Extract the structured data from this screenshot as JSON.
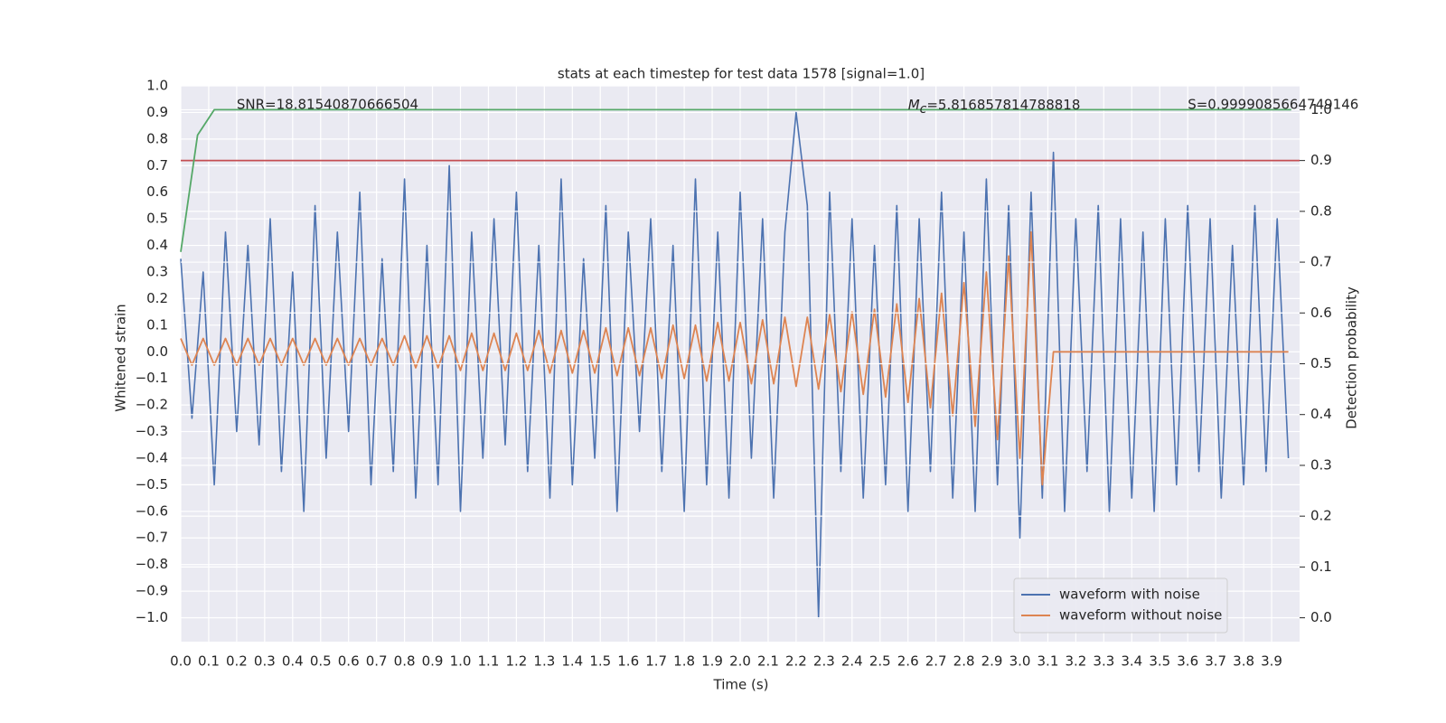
{
  "chart_data": {
    "type": "line",
    "title": "stats at each timestep for test data 1578 [signal=1.0]",
    "xlabel": "Time (s)",
    "ylabel": "Whitened strain",
    "y2label": "Detection probability",
    "annotations": [
      "SNR=18.81540870666504",
      {
        "symbol": "M",
        "subscript": "c",
        "text": "=5.816857814788818"
      },
      "S=0.9999085664749146"
    ],
    "x": [
      0,
      0.04,
      0.08,
      0.12,
      0.16,
      0.2,
      0.24,
      0.28,
      0.32,
      0.36,
      0.4,
      0.44,
      0.48,
      0.52,
      0.56,
      0.6,
      0.64,
      0.68,
      0.72,
      0.76,
      0.8,
      0.84,
      0.88,
      0.92,
      0.96,
      1,
      1.04,
      1.08,
      1.12,
      1.16,
      1.2,
      1.24,
      1.28,
      1.32,
      1.36,
      1.4,
      1.44,
      1.48,
      1.52,
      1.56,
      1.6,
      1.64,
      1.68,
      1.72,
      1.76,
      1.8,
      1.84,
      1.88,
      1.92,
      1.96,
      2,
      2.04,
      2.08,
      2.12,
      2.16,
      2.2,
      2.24,
      2.28,
      2.32,
      2.36,
      2.4,
      2.44,
      2.48,
      2.52,
      2.56,
      2.6,
      2.64,
      2.68,
      2.72,
      2.76,
      2.8,
      2.84,
      2.88,
      2.92,
      2.96,
      3,
      3.04,
      3.08,
      3.12,
      3.16,
      3.2,
      3.24,
      3.28,
      3.32,
      3.36,
      3.4,
      3.44,
      3.48,
      3.52,
      3.56,
      3.6,
      3.64,
      3.68,
      3.72,
      3.76,
      3.8,
      3.84,
      3.88,
      3.92,
      3.96
    ],
    "series": [
      {
        "name": "waveform with noise",
        "color": "#4c72b0",
        "values": [
          0.35,
          -0.25,
          0.3,
          -0.5,
          0.45,
          -0.3,
          0.4,
          -0.35,
          0.5,
          -0.45,
          0.3,
          -0.6,
          0.55,
          -0.4,
          0.45,
          -0.3,
          0.6,
          -0.5,
          0.35,
          -0.45,
          0.65,
          -0.55,
          0.4,
          -0.5,
          0.7,
          -0.6,
          0.45,
          -0.4,
          0.5,
          -0.35,
          0.6,
          -0.45,
          0.4,
          -0.55,
          0.65,
          -0.5,
          0.35,
          -0.4,
          0.55,
          -0.6,
          0.45,
          -0.3,
          0.5,
          -0.45,
          0.4,
          -0.6,
          0.65,
          -0.5,
          0.45,
          -0.55,
          0.6,
          -0.4,
          0.5,
          -0.55,
          0.45,
          0.9,
          0.55,
          -1.0,
          0.6,
          -0.45,
          0.5,
          -0.55,
          0.4,
          -0.5,
          0.55,
          -0.6,
          0.5,
          -0.45,
          0.6,
          -0.55,
          0.45,
          -0.6,
          0.65,
          -0.5,
          0.55,
          -0.7,
          0.6,
          -0.55,
          0.75,
          -0.6,
          0.5,
          -0.45,
          0.55,
          -0.6,
          0.5,
          -0.55,
          0.45,
          -0.6,
          0.5,
          -0.5,
          0.55,
          -0.45,
          0.5,
          -0.55,
          0.4,
          -0.5,
          0.55,
          -0.45,
          0.5,
          -0.4
        ]
      },
      {
        "name": "waveform without noise",
        "color": "#dd8452",
        "values": [
          0.05,
          -0.05,
          0.05,
          -0.05,
          0.05,
          -0.05,
          0.05,
          -0.05,
          0.05,
          -0.05,
          0.05,
          -0.05,
          0.05,
          -0.05,
          0.05,
          -0.05,
          0.05,
          -0.05,
          0.05,
          -0.05,
          0.06,
          -0.06,
          0.06,
          -0.06,
          0.06,
          -0.07,
          0.07,
          -0.07,
          0.07,
          -0.07,
          0.07,
          -0.07,
          0.08,
          -0.08,
          0.08,
          -0.08,
          0.08,
          -0.08,
          0.09,
          -0.09,
          0.09,
          -0.09,
          0.09,
          -0.1,
          0.1,
          -0.1,
          0.1,
          -0.11,
          0.11,
          -0.11,
          0.11,
          -0.12,
          0.12,
          -0.12,
          0.13,
          -0.13,
          0.13,
          -0.14,
          0.14,
          -0.15,
          0.15,
          -0.16,
          0.16,
          -0.17,
          0.18,
          -0.19,
          0.2,
          -0.21,
          0.22,
          -0.24,
          0.26,
          -0.28,
          0.3,
          -0.33,
          0.36,
          -0.4,
          0.45,
          -0.5,
          0,
          0,
          0,
          0,
          0,
          0,
          0,
          0,
          0,
          0,
          0,
          0,
          0,
          0,
          0,
          0,
          0,
          0,
          0,
          0,
          0,
          0
        ]
      },
      {
        "color": "#55a868",
        "axis": "y2",
        "x": [
          0,
          0.06,
          0.12,
          0.2,
          3.97
        ],
        "values": [
          0.72,
          0.95,
          1.0,
          1.0,
          1.0
        ]
      }
    ],
    "hlines": [
      {
        "axis": "y2",
        "value": 0.9,
        "color": "#c44e52"
      }
    ],
    "xlim": [
      0,
      4
    ],
    "ylim": [
      -1.09,
      1.0
    ],
    "y2lim": [
      -0.047,
      1.047
    ],
    "xticks": [
      {
        "value": 0,
        "label": "0.0"
      },
      0.1,
      0.2,
      0.3,
      0.4,
      0.5,
      0.6,
      0.7,
      0.8,
      0.9,
      {
        "value": 1,
        "label": "1.0"
      },
      1.1,
      1.2,
      1.3,
      1.4,
      1.5,
      1.6,
      1.7,
      1.8,
      1.9,
      {
        "value": 2,
        "label": "2.0"
      },
      2.1,
      2.2,
      2.3,
      2.4,
      2.5,
      2.6,
      2.7,
      2.8,
      2.9,
      {
        "value": 3,
        "label": "3.0"
      },
      3.1,
      3.2,
      3.3,
      3.4,
      3.5,
      3.6,
      3.7,
      3.8,
      3.9
    ],
    "yticks": [
      {
        "value": 1,
        "label": "1.0"
      },
      0.9,
      0.8,
      0.7,
      0.6,
      0.5,
      0.4,
      0.3,
      0.2,
      0.1,
      {
        "value": 0,
        "label": "0.0"
      },
      {
        "value": -0.1,
        "label": "−0.1"
      },
      {
        "value": -0.2,
        "label": "−0.2"
      },
      {
        "value": -0.3,
        "label": "−0.3"
      },
      {
        "value": -0.4,
        "label": "−0.4"
      },
      {
        "value": -0.5,
        "label": "−0.5"
      },
      {
        "value": -0.6,
        "label": "−0.6"
      },
      {
        "value": -0.7,
        "label": "−0.7"
      },
      {
        "value": -0.8,
        "label": "−0.8"
      },
      {
        "value": -0.9,
        "label": "−0.9"
      },
      {
        "value": -1,
        "label": "−1.0"
      }
    ],
    "y2ticks": [
      {
        "value": 0,
        "label": "0.0"
      },
      0.1,
      0.2,
      0.3,
      0.4,
      0.5,
      0.6,
      0.7,
      0.8,
      0.9,
      {
        "value": 1,
        "label": "1.0"
      }
    ],
    "grid": true,
    "legend": "lower right",
    "background": "#eaeaf2"
  }
}
